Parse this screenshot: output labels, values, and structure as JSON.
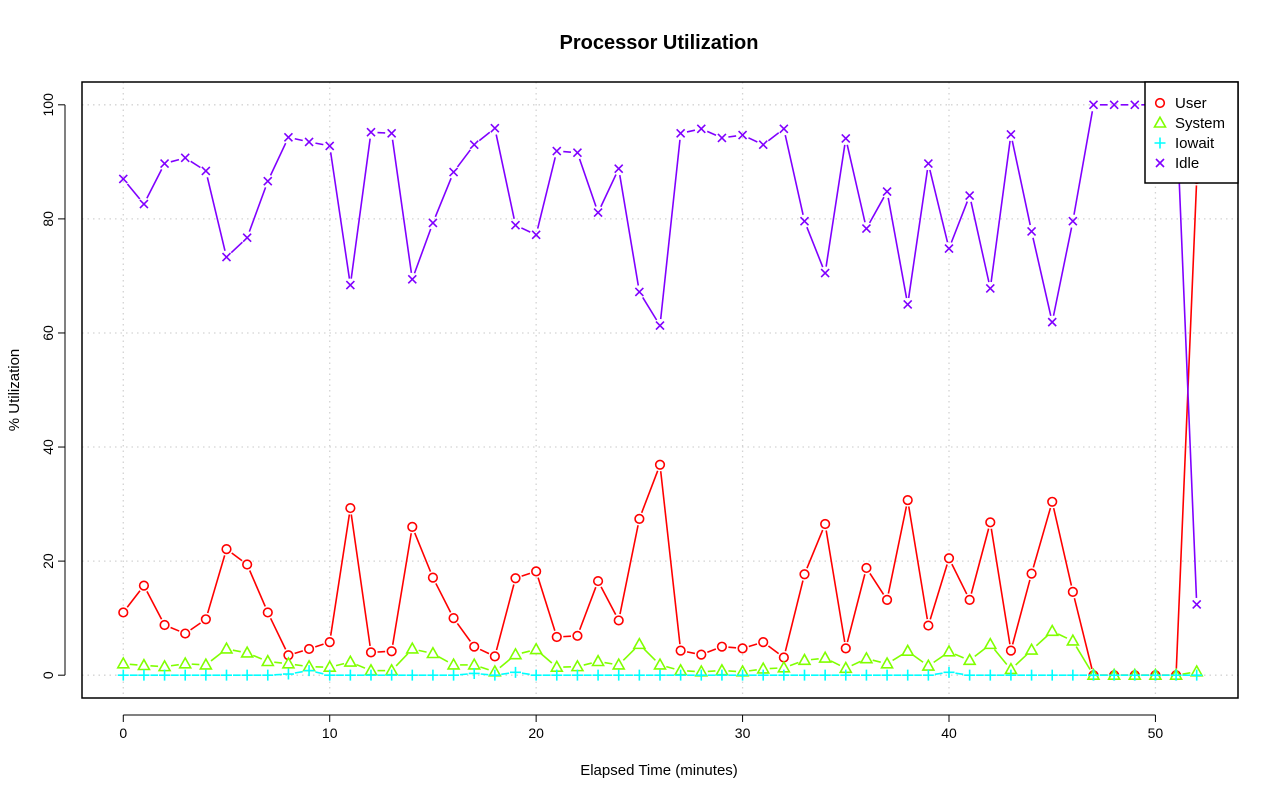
{
  "chart_data": {
    "type": "line",
    "title": "Processor Utilization",
    "xlabel": "Elapsed Time (minutes)",
    "ylabel": "% Utilization",
    "xlim": [
      -2,
      54
    ],
    "ylim": [
      -4,
      104
    ],
    "x_ticks": [
      0,
      10,
      20,
      30,
      40,
      50
    ],
    "y_ticks": [
      0,
      20,
      40,
      60,
      80,
      100
    ],
    "grid": true,
    "legend_position": "top-right",
    "x": [
      0,
      1,
      2,
      3,
      4,
      5,
      6,
      7,
      8,
      9,
      10,
      11,
      12,
      13,
      14,
      15,
      16,
      17,
      18,
      19,
      20,
      21,
      22,
      23,
      24,
      25,
      26,
      27,
      28,
      29,
      30,
      31,
      32,
      33,
      34,
      35,
      36,
      37,
      38,
      39,
      40,
      41,
      42,
      43,
      44,
      45,
      46,
      47,
      48,
      49,
      50,
      51,
      52
    ],
    "series": [
      {
        "name": "User",
        "color": "#ff0000",
        "marker": "circle",
        "values": [
          11,
          15.7,
          8.8,
          7.3,
          9.8,
          22.1,
          19.4,
          11,
          3.5,
          4.6,
          5.8,
          29.3,
          4,
          4.2,
          26,
          17.1,
          10,
          5,
          3.3,
          17,
          18.2,
          6.7,
          6.9,
          16.5,
          9.6,
          27.4,
          36.9,
          4.3,
          3.6,
          5,
          4.7,
          5.8,
          3.1,
          17.7,
          26.5,
          4.7,
          18.8,
          13.2,
          30.7,
          8.7,
          20.5,
          13.2,
          26.8,
          4.3,
          17.8,
          30.4,
          14.6,
          0,
          0,
          0,
          0,
          0,
          87
        ]
      },
      {
        "name": "System",
        "color": "#80ff00",
        "marker": "triangle",
        "values": [
          2,
          1.7,
          1.5,
          2,
          1.8,
          4.6,
          3.9,
          2.4,
          2,
          1.5,
          1.4,
          2.3,
          0.8,
          0.8,
          4.6,
          3.8,
          1.8,
          1.8,
          0.6,
          3.6,
          4.5,
          1.4,
          1.5,
          2.4,
          1.8,
          5.4,
          1.8,
          0.8,
          0.6,
          0.8,
          0.6,
          1.1,
          1.3,
          2.6,
          3,
          1.2,
          2.9,
          2,
          4.2,
          1.6,
          4.1,
          2.6,
          5.4,
          1,
          4.4,
          7.7,
          6,
          0,
          0,
          0,
          0,
          0,
          0.6
        ]
      },
      {
        "name": "Iowait",
        "color": "#00ffff",
        "marker": "plus",
        "values": [
          0,
          0,
          0,
          0,
          0,
          0,
          0,
          0,
          0.2,
          0.8,
          0,
          0,
          0,
          0,
          0,
          0,
          0,
          0.3,
          0,
          0.5,
          0,
          0,
          0,
          0,
          0,
          0,
          0,
          0,
          0,
          0,
          0,
          0,
          0,
          0,
          0,
          0,
          0,
          0,
          0,
          0,
          0.5,
          0,
          0,
          0,
          0,
          0,
          0,
          0,
          0,
          0,
          0,
          0,
          0
        ]
      },
      {
        "name": "Idle",
        "color": "#8000ff",
        "marker": "cross",
        "values": [
          87,
          82.6,
          89.7,
          90.7,
          88.4,
          73.3,
          76.7,
          86.6,
          94.3,
          93.5,
          92.8,
          68.4,
          95.2,
          95,
          69.4,
          79.3,
          88.2,
          93,
          95.9,
          78.9,
          77.2,
          91.9,
          91.6,
          81.1,
          88.8,
          67.2,
          61.3,
          95,
          95.8,
          94.2,
          94.7,
          93,
          95.8,
          79.6,
          70.5,
          94.1,
          78.3,
          84.8,
          65,
          89.7,
          74.8,
          84.1,
          67.8,
          94.8,
          77.8,
          61.9,
          79.6,
          100,
          100,
          100,
          100,
          100,
          12.4
        ]
      }
    ]
  }
}
